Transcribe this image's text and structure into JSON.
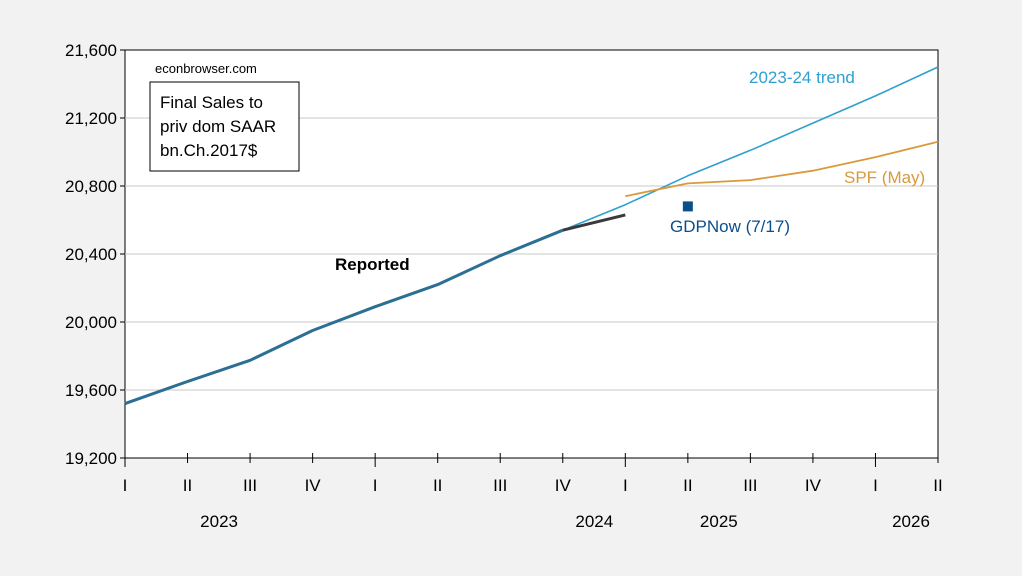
{
  "source": "econbrowser.com",
  "chart_data": {
    "type": "line",
    "note_lines": [
      "Final Sales to",
      "priv dom SAAR",
      "bn.Ch.2017$"
    ],
    "ylim": [
      19200,
      21600
    ],
    "yticks": [
      19200,
      19600,
      20000,
      20400,
      20800,
      21200,
      21600
    ],
    "ytick_labels": [
      "19,200",
      "19,600",
      "20,000",
      "20,400",
      "20,800",
      "21,200",
      "21,600"
    ],
    "xlim": [
      "2023Q1",
      "2026Q2"
    ],
    "quarter_labels": [
      "I",
      "II",
      "III",
      "IV",
      "I",
      "II",
      "III",
      "IV",
      "I",
      "II",
      "III",
      "IV",
      "I",
      "II"
    ],
    "year_labels": [
      {
        "label": "2023",
        "quarter": "2023Q3"
      },
      {
        "label": "2024",
        "quarter": "2025Q1"
      },
      {
        "label": "2025",
        "quarter": "2025Q2"
      },
      {
        "label": "2026",
        "quarter": "2026Q2"
      }
    ],
    "grid": true,
    "colors": {
      "trend": "#2f9fd0",
      "reported": "#2b6f94",
      "reported_ext": "#3a3a3a",
      "spf": "#d99a3c",
      "gdpnow": "#0b4f8a"
    },
    "series": [
      {
        "key": "trend",
        "name": "2023-24 trend",
        "x": [
          "2024Q3",
          "2024Q4",
          "2025Q1",
          "2025Q2",
          "2025Q3",
          "2025Q4",
          "2026Q1",
          "2026Q2"
        ],
        "y": [
          20390,
          20540,
          20690,
          20860,
          21010,
          21170,
          21330,
          21500
        ]
      },
      {
        "key": "reported",
        "name": "Reported",
        "x": [
          "2023Q1",
          "2023Q2",
          "2023Q3",
          "2023Q4",
          "2024Q1",
          "2024Q2",
          "2024Q3",
          "2024Q4"
        ],
        "y": [
          19520,
          19650,
          19775,
          19950,
          20090,
          20220,
          20390,
          20540
        ]
      },
      {
        "key": "reported_ext",
        "x": [
          "2024Q4",
          "2025Q1"
        ],
        "y": [
          20540,
          20630
        ]
      },
      {
        "key": "spf",
        "name": "SPF (May)",
        "x": [
          "2025Q1",
          "2025Q2",
          "2025Q3",
          "2025Q4",
          "2026Q1",
          "2026Q2"
        ],
        "y": [
          20740,
          20815,
          20835,
          20890,
          20970,
          21060
        ]
      },
      {
        "key": "gdpnow",
        "name": "GDPNow (7/17)",
        "x": [
          "2025Q2"
        ],
        "y": [
          20680
        ]
      }
    ]
  }
}
